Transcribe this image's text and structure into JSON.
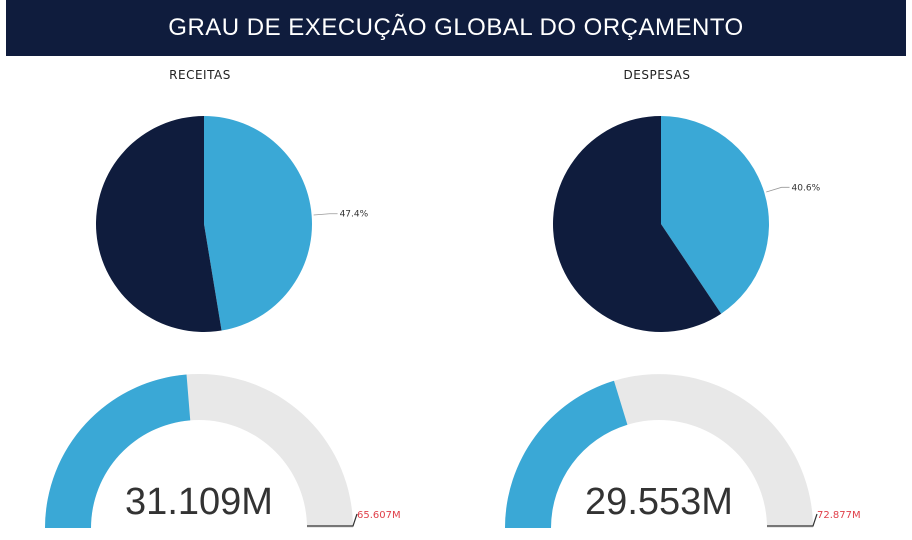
{
  "header": {
    "title": "GRAU DE EXECUÇÃO GLOBAL DO ORÇAMENTO"
  },
  "colors": {
    "executed": "#3aa8d6",
    "remaining": "#0f1c3d",
    "gauge_track": "#e8e8e8",
    "max_label": "#e0404a"
  },
  "chart_data": [
    {
      "type": "pie",
      "title": "RECEITAS",
      "slices": [
        {
          "value": 47.4,
          "label": "47.4%",
          "color": "#3aa8d6"
        },
        {
          "value": 52.6,
          "label": "",
          "color": "#0f1c3d"
        }
      ]
    },
    {
      "type": "pie",
      "title": "DESPESAS",
      "slices": [
        {
          "value": 40.6,
          "label": "40.6%",
          "color": "#3aa8d6"
        },
        {
          "value": 59.4,
          "label": "",
          "color": "#0f1c3d"
        }
      ]
    },
    {
      "type": "gauge",
      "value": 31.109,
      "max": 65.607,
      "value_label": "31.109M",
      "max_label": "65.607M"
    },
    {
      "type": "gauge",
      "value": 29.553,
      "max": 72.877,
      "value_label": "29.553M",
      "max_label": "72.877M"
    }
  ]
}
